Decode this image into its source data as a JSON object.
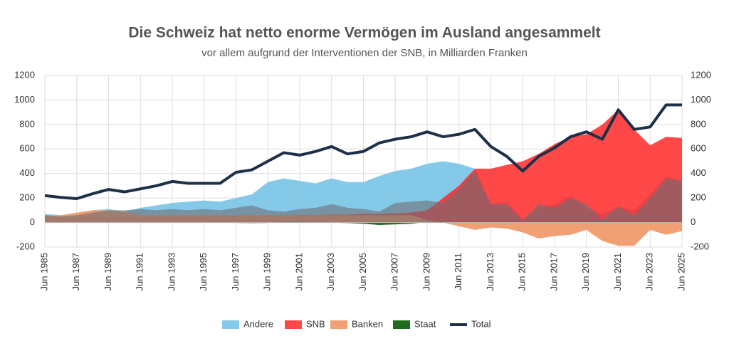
{
  "chart_data": {
    "type": "area",
    "title": "Die Schweiz hat netto enorme Vermögen im Ausland angesammelt",
    "subtitle": "vor allem aufgrund der Interventionen der SNB, in Milliarden Franken",
    "categories": [
      "Jun 1985",
      null,
      "Jun 1987",
      null,
      "Jun 1989",
      null,
      "Jun 1991",
      null,
      "Jun 1993",
      null,
      "Jun 1995",
      null,
      "Jun 1997",
      null,
      "Jun 1999",
      null,
      "Jun 2001",
      null,
      "Jun 2003",
      null,
      "Jun 2005",
      null,
      "Jun 2007",
      null,
      "Jun 2009",
      null,
      "Jun 2011",
      null,
      "Jun 2013",
      null,
      "Jun 2015",
      null,
      "Jun 2017",
      null,
      "Jun 2019",
      null,
      "Jun 2021",
      null,
      "Jun 2023",
      null,
      "Jun 2025"
    ],
    "series": [
      {
        "name": "Andere",
        "color": "rgba(120,195,230,0.9)",
        "values": [
          70,
          60,
          70,
          100,
          110,
          90,
          120,
          140,
          160,
          170,
          180,
          170,
          200,
          230,
          330,
          360,
          340,
          320,
          360,
          330,
          330,
          380,
          420,
          440,
          480,
          500,
          480,
          440,
          150,
          170,
          30,
          120,
          150,
          220,
          120,
          70,
          130,
          100,
          230,
          380,
          340
        ]
      },
      {
        "name": "SNB",
        "color": "rgba(255,40,40,0.85)",
        "values": [
          40,
          40,
          40,
          45,
          45,
          45,
          50,
          50,
          50,
          50,
          55,
          55,
          55,
          55,
          60,
          60,
          60,
          60,
          65,
          65,
          70,
          70,
          75,
          80,
          100,
          200,
          300,
          440,
          440,
          470,
          500,
          560,
          640,
          700,
          720,
          800,
          920,
          760,
          630,
          700,
          690
        ]
      },
      {
        "name": "Banken",
        "color": "rgba(240,150,100,0.9)",
        "values": [
          50,
          60,
          80,
          100,
          100,
          90,
          60,
          60,
          60,
          60,
          60,
          60,
          60,
          60,
          60,
          60,
          60,
          60,
          60,
          60,
          60,
          60,
          60,
          60,
          20,
          0,
          -30,
          -60,
          -40,
          -50,
          -80,
          -130,
          -110,
          -100,
          -60,
          -150,
          -190,
          -190,
          -60,
          -100,
          -70
        ]
      },
      {
        "name": "Staat",
        "color": "#1f6b1f",
        "values": [
          0,
          0,
          0,
          0,
          0,
          0,
          0,
          0,
          0,
          0,
          0,
          0,
          -3,
          -5,
          -3,
          5,
          5,
          3,
          0,
          -5,
          -10,
          -20,
          -15,
          -10,
          5,
          5,
          0,
          0,
          0,
          0,
          0,
          0,
          0,
          0,
          0,
          0,
          0,
          0,
          0,
          0,
          0
        ]
      },
      {
        "color": "rgba(110,110,115,0.6)",
        "values": [
          60,
          50,
          60,
          80,
          100,
          100,
          110,
          100,
          110,
          100,
          110,
          100,
          120,
          140,
          100,
          90,
          110,
          120,
          150,
          120,
          110,
          90,
          160,
          170,
          180,
          160,
          270,
          420,
          150,
          150,
          20,
          150,
          120,
          200,
          150,
          30,
          130,
          60,
          200,
          360,
          340
        ]
      },
      {
        "name": "Total",
        "type": "line",
        "color": "#1d3048",
        "values": [
          220,
          205,
          195,
          235,
          270,
          250,
          275,
          300,
          335,
          320,
          320,
          320,
          410,
          430,
          500,
          570,
          550,
          580,
          620,
          560,
          580,
          650,
          680,
          700,
          740,
          700,
          720,
          760,
          620,
          540,
          420,
          540,
          610,
          700,
          740,
          680,
          920,
          760,
          780,
          960,
          960
        ]
      }
    ],
    "ylim": [
      -200,
      1200
    ],
    "yticks": [
      -200,
      0,
      200,
      400,
      600,
      800,
      1000,
      1200
    ],
    "y2lim": [
      -200,
      1200
    ],
    "y2ticks": [
      -200,
      0,
      200,
      400,
      600,
      800,
      1000,
      1200
    ],
    "grid": true,
    "legend": "bottom"
  }
}
